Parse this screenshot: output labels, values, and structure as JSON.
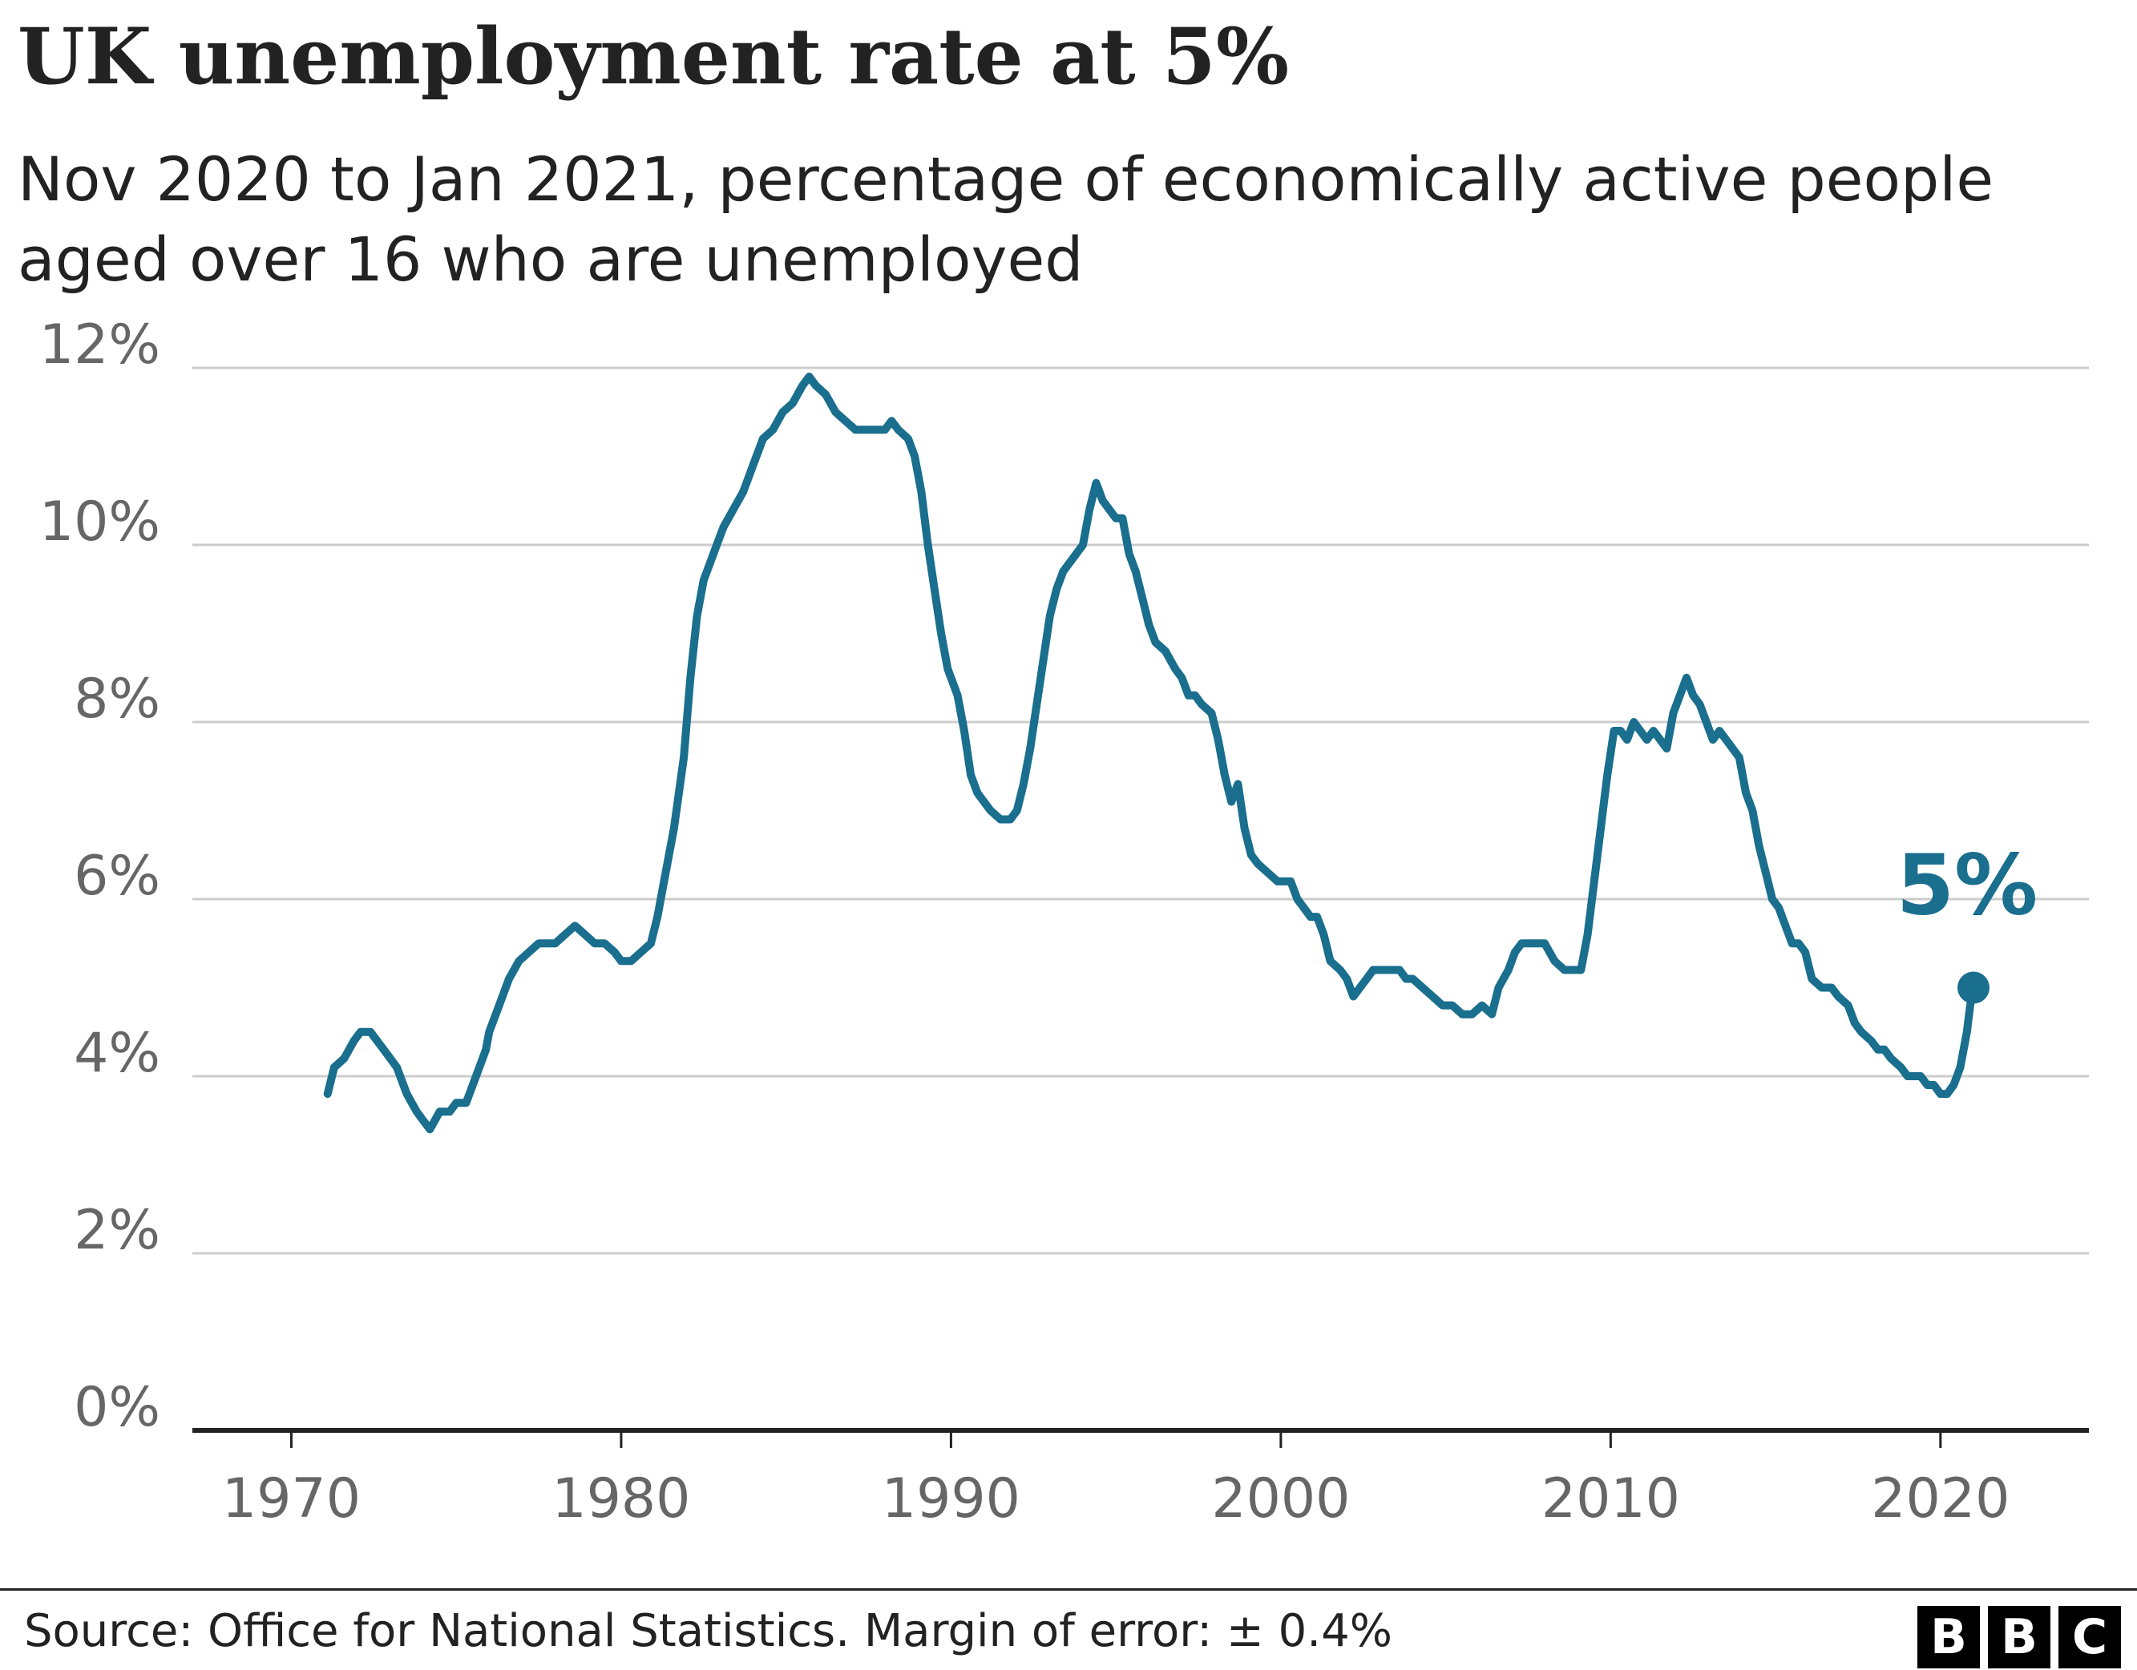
{
  "title": "UK unemployment rate at 5%",
  "subtitle": "Nov 2020 to Jan 2021, percentage of economically active people aged over 16 who are unemployed",
  "source": "Source: Office for National Statistics. Margin of error: ± 0.4%",
  "logo": [
    "B",
    "B",
    "C"
  ],
  "colors": {
    "line": "#1a6e8e",
    "grid": "#cccccc",
    "axis": "#222222",
    "tick_text": "#666666",
    "title": "#222222"
  },
  "chart_data": {
    "type": "line",
    "x_axis": {
      "min": 1967,
      "max": 2024.5,
      "ticks": [
        1970,
        1980,
        1990,
        2000,
        2010,
        2020
      ],
      "tick_labels": [
        "1970",
        "1980",
        "1990",
        "2000",
        "2010",
        "2020"
      ]
    },
    "y_axis": {
      "min": 0,
      "max": 12,
      "ticks": [
        0,
        2,
        4,
        6,
        8,
        10,
        12
      ],
      "tick_labels": [
        "0%",
        "2%",
        "4%",
        "6%",
        "8%",
        "10%",
        "12%"
      ],
      "unit": "%"
    },
    "grid": true,
    "end_label": "5%",
    "series": [
      {
        "points": [
          [
            1971.1,
            3.8
          ],
          [
            1971.3,
            4.1
          ],
          [
            1971.6,
            4.2
          ],
          [
            1971.9,
            4.4
          ],
          [
            1972.1,
            4.5
          ],
          [
            1972.4,
            4.5
          ],
          [
            1972.6,
            4.4
          ],
          [
            1972.8,
            4.3
          ],
          [
            1973.0,
            4.2
          ],
          [
            1973.2,
            4.1
          ],
          [
            1973.5,
            3.8
          ],
          [
            1973.8,
            3.6
          ],
          [
            1974.0,
            3.5
          ],
          [
            1974.2,
            3.4
          ],
          [
            1974.5,
            3.6
          ],
          [
            1974.8,
            3.6
          ],
          [
            1975.0,
            3.7
          ],
          [
            1975.3,
            3.7
          ],
          [
            1975.6,
            4.0
          ],
          [
            1975.9,
            4.3
          ],
          [
            1976.0,
            4.5
          ],
          [
            1976.3,
            4.8
          ],
          [
            1976.6,
            5.1
          ],
          [
            1976.9,
            5.3
          ],
          [
            1977.2,
            5.4
          ],
          [
            1977.5,
            5.5
          ],
          [
            1978.0,
            5.5
          ],
          [
            1978.3,
            5.6
          ],
          [
            1978.6,
            5.7
          ],
          [
            1978.9,
            5.6
          ],
          [
            1979.2,
            5.5
          ],
          [
            1979.5,
            5.5
          ],
          [
            1979.8,
            5.4
          ],
          [
            1980.0,
            5.3
          ],
          [
            1980.3,
            5.3
          ],
          [
            1980.6,
            5.4
          ],
          [
            1980.9,
            5.5
          ],
          [
            1981.1,
            5.8
          ],
          [
            1981.3,
            6.2
          ],
          [
            1981.6,
            6.8
          ],
          [
            1981.9,
            7.6
          ],
          [
            1982.1,
            8.5
          ],
          [
            1982.3,
            9.2
          ],
          [
            1982.5,
            9.6
          ],
          [
            1982.8,
            9.9
          ],
          [
            1983.1,
            10.2
          ],
          [
            1983.4,
            10.4
          ],
          [
            1983.7,
            10.6
          ],
          [
            1984.0,
            10.9
          ],
          [
            1984.3,
            11.2
          ],
          [
            1984.6,
            11.3
          ],
          [
            1984.9,
            11.5
          ],
          [
            1985.2,
            11.6
          ],
          [
            1985.5,
            11.8
          ],
          [
            1985.7,
            11.9
          ],
          [
            1985.9,
            11.8
          ],
          [
            1986.2,
            11.7
          ],
          [
            1986.5,
            11.5
          ],
          [
            1986.8,
            11.4
          ],
          [
            1987.1,
            11.3
          ],
          [
            1987.4,
            11.3
          ],
          [
            1987.7,
            11.3
          ],
          [
            1988.0,
            11.3
          ],
          [
            1988.2,
            11.4
          ],
          [
            1988.4,
            11.3
          ],
          [
            1988.7,
            11.2
          ],
          [
            1988.9,
            11.0
          ],
          [
            1989.1,
            10.6
          ],
          [
            1989.3,
            10.0
          ],
          [
            1989.5,
            9.5
          ],
          [
            1989.7,
            9.0
          ],
          [
            1989.9,
            8.6
          ],
          [
            1990.2,
            8.3
          ],
          [
            1990.4,
            7.9
          ],
          [
            1990.6,
            7.4
          ],
          [
            1990.8,
            7.2
          ],
          [
            1991.0,
            7.1
          ],
          [
            1991.2,
            7.0
          ],
          [
            1991.5,
            6.9
          ],
          [
            1991.8,
            6.9
          ],
          [
            1992.0,
            7.0
          ],
          [
            1992.2,
            7.3
          ],
          [
            1992.4,
            7.7
          ],
          [
            1992.6,
            8.2
          ],
          [
            1992.8,
            8.7
          ],
          [
            1993.0,
            9.2
          ],
          [
            1993.2,
            9.5
          ],
          [
            1993.4,
            9.7
          ],
          [
            1993.6,
            9.8
          ],
          [
            1993.8,
            9.9
          ],
          [
            1994.0,
            10.0
          ],
          [
            1994.2,
            10.4
          ],
          [
            1994.4,
            10.7
          ],
          [
            1994.6,
            10.5
          ],
          [
            1994.8,
            10.4
          ],
          [
            1995.0,
            10.3
          ],
          [
            1995.2,
            10.3
          ],
          [
            1995.4,
            9.9
          ],
          [
            1995.6,
            9.7
          ],
          [
            1995.8,
            9.4
          ],
          [
            1996.0,
            9.1
          ],
          [
            1996.2,
            8.9
          ],
          [
            1996.5,
            8.8
          ],
          [
            1996.8,
            8.6
          ],
          [
            1997.0,
            8.5
          ],
          [
            1997.2,
            8.3
          ],
          [
            1997.4,
            8.3
          ],
          [
            1997.6,
            8.2
          ],
          [
            1997.9,
            8.1
          ],
          [
            1998.1,
            7.8
          ],
          [
            1998.3,
            7.4
          ],
          [
            1998.5,
            7.1
          ],
          [
            1998.7,
            7.3
          ],
          [
            1998.9,
            6.8
          ],
          [
            1999.1,
            6.5
          ],
          [
            1999.3,
            6.4
          ],
          [
            1999.6,
            6.3
          ],
          [
            1999.9,
            6.2
          ],
          [
            2000.1,
            6.2
          ],
          [
            2000.3,
            6.2
          ],
          [
            2000.5,
            6.0
          ],
          [
            2000.7,
            5.9
          ],
          [
            2000.9,
            5.8
          ],
          [
            2001.1,
            5.8
          ],
          [
            2001.3,
            5.6
          ],
          [
            2001.5,
            5.3
          ],
          [
            2001.8,
            5.2
          ],
          [
            2002.0,
            5.1
          ],
          [
            2002.2,
            4.9
          ],
          [
            2002.4,
            5.0
          ],
          [
            2002.6,
            5.1
          ],
          [
            2002.8,
            5.2
          ],
          [
            2003.0,
            5.2
          ],
          [
            2003.3,
            5.2
          ],
          [
            2003.6,
            5.2
          ],
          [
            2003.8,
            5.1
          ],
          [
            2004.0,
            5.1
          ],
          [
            2004.3,
            5.0
          ],
          [
            2004.6,
            4.9
          ],
          [
            2004.9,
            4.8
          ],
          [
            2005.2,
            4.8
          ],
          [
            2005.5,
            4.7
          ],
          [
            2005.8,
            4.7
          ],
          [
            2006.1,
            4.8
          ],
          [
            2006.4,
            4.7
          ],
          [
            2006.6,
            5.0
          ],
          [
            2006.9,
            5.2
          ],
          [
            2007.1,
            5.4
          ],
          [
            2007.3,
            5.5
          ],
          [
            2007.5,
            5.5
          ],
          [
            2007.8,
            5.5
          ],
          [
            2008.0,
            5.5
          ],
          [
            2008.3,
            5.3
          ],
          [
            2008.6,
            5.2
          ],
          [
            2008.9,
            5.2
          ],
          [
            2009.1,
            5.2
          ],
          [
            2009.3,
            5.6
          ],
          [
            2009.5,
            6.2
          ],
          [
            2009.7,
            6.8
          ],
          [
            2009.9,
            7.4
          ],
          [
            2010.1,
            7.9
          ],
          [
            2010.3,
            7.9
          ],
          [
            2010.5,
            7.8
          ],
          [
            2010.7,
            8.0
          ],
          [
            2010.9,
            7.9
          ],
          [
            2011.1,
            7.8
          ],
          [
            2011.3,
            7.9
          ],
          [
            2011.5,
            7.8
          ],
          [
            2011.7,
            7.7
          ],
          [
            2011.9,
            8.1
          ],
          [
            2012.1,
            8.3
          ],
          [
            2012.3,
            8.5
          ],
          [
            2012.5,
            8.3
          ],
          [
            2012.7,
            8.2
          ],
          [
            2012.9,
            8.0
          ],
          [
            2013.1,
            7.8
          ],
          [
            2013.3,
            7.9
          ],
          [
            2013.5,
            7.8
          ],
          [
            2013.7,
            7.7
          ],
          [
            2013.9,
            7.6
          ],
          [
            2014.1,
            7.2
          ],
          [
            2014.3,
            7.0
          ],
          [
            2014.5,
            6.6
          ],
          [
            2014.7,
            6.3
          ],
          [
            2014.9,
            6.0
          ],
          [
            2015.1,
            5.9
          ],
          [
            2015.3,
            5.7
          ],
          [
            2015.5,
            5.5
          ],
          [
            2015.7,
            5.5
          ],
          [
            2015.9,
            5.4
          ],
          [
            2016.1,
            5.1
          ],
          [
            2016.4,
            5.0
          ],
          [
            2016.7,
            5.0
          ],
          [
            2016.9,
            4.9
          ],
          [
            2017.2,
            4.8
          ],
          [
            2017.4,
            4.6
          ],
          [
            2017.6,
            4.5
          ],
          [
            2017.9,
            4.4
          ],
          [
            2018.1,
            4.3
          ],
          [
            2018.3,
            4.3
          ],
          [
            2018.5,
            4.2
          ],
          [
            2018.8,
            4.1
          ],
          [
            2019.0,
            4.0
          ],
          [
            2019.2,
            4.0
          ],
          [
            2019.4,
            4.0
          ],
          [
            2019.6,
            3.9
          ],
          [
            2019.8,
            3.9
          ],
          [
            2020.0,
            3.8
          ],
          [
            2020.2,
            3.8
          ],
          [
            2020.4,
            3.9
          ],
          [
            2020.6,
            4.1
          ],
          [
            2020.8,
            4.5
          ],
          [
            2020.9,
            4.8
          ],
          [
            2021.0,
            5.0
          ]
        ]
      }
    ]
  }
}
